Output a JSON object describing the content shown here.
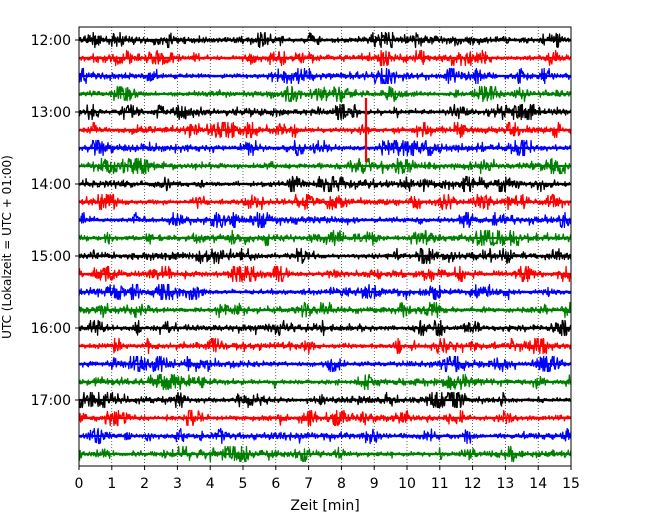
{
  "chart_data": {
    "type": "line",
    "title": "",
    "xlabel": "Zeit  [min]",
    "ylabel": "UTC (Lokalzeit = UTC + 01:00)",
    "xlim": [
      0,
      15
    ],
    "x_ticks": [
      "0",
      "1",
      "2",
      "3",
      "4",
      "5",
      "6",
      "7",
      "8",
      "9",
      "10",
      "11",
      "12",
      "13",
      "14",
      "15"
    ],
    "y_ticks": [
      "12:00",
      "13:00",
      "14:00",
      "15:00",
      "16:00",
      "17:00"
    ],
    "grid": "vertical dotted at each minute",
    "trace_interval_minutes": 15,
    "trace_colors": [
      "#000000",
      "#ff0000",
      "#0000ff",
      "#008000"
    ],
    "series": [
      {
        "start": "12:00",
        "color": "#000000"
      },
      {
        "start": "12:15",
        "color": "#ff0000"
      },
      {
        "start": "12:30",
        "color": "#0000ff"
      },
      {
        "start": "12:45",
        "color": "#008000"
      },
      {
        "start": "13:00",
        "color": "#000000"
      },
      {
        "start": "13:15",
        "color": "#ff0000"
      },
      {
        "start": "13:30",
        "color": "#0000ff"
      },
      {
        "start": "13:45",
        "color": "#008000"
      },
      {
        "start": "14:00",
        "color": "#000000"
      },
      {
        "start": "14:15",
        "color": "#ff0000"
      },
      {
        "start": "14:30",
        "color": "#0000ff"
      },
      {
        "start": "14:45",
        "color": "#008000"
      },
      {
        "start": "15:00",
        "color": "#000000"
      },
      {
        "start": "15:15",
        "color": "#ff0000"
      },
      {
        "start": "15:30",
        "color": "#0000ff"
      },
      {
        "start": "15:45",
        "color": "#008000"
      },
      {
        "start": "16:00",
        "color": "#000000"
      },
      {
        "start": "16:15",
        "color": "#ff0000"
      },
      {
        "start": "16:30",
        "color": "#0000ff"
      },
      {
        "start": "16:45",
        "color": "#008000"
      },
      {
        "start": "17:00",
        "color": "#000000"
      },
      {
        "start": "17:15",
        "color": "#ff0000"
      },
      {
        "start": "17:30",
        "color": "#0000ff"
      },
      {
        "start": "17:45",
        "color": "#008000"
      }
    ],
    "events": [
      {
        "trace_start": "13:15",
        "x": 8.75,
        "description": "spike"
      }
    ]
  }
}
